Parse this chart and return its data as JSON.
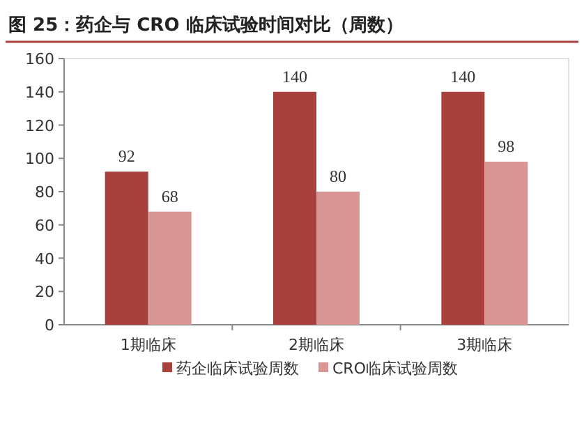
{
  "chart_data": {
    "type": "bar",
    "title": "图 25：药企与 CRO 临床试验时间对比（周数）",
    "categories": [
      "1期临床",
      "2期临床",
      "3期临床"
    ],
    "series": [
      {
        "name": "药企临床试验周数",
        "color": "#a8403e",
        "values": [
          92,
          140,
          140
        ]
      },
      {
        "name": "CRO临床试验周数",
        "color": "#d99694",
        "values": [
          68,
          80,
          98
        ]
      }
    ],
    "ylim": [
      0,
      160
    ],
    "yticks": [
      0,
      20,
      40,
      60,
      80,
      100,
      120,
      140,
      160
    ],
    "data_labels": true,
    "legend": "bottom",
    "grid": false
  }
}
